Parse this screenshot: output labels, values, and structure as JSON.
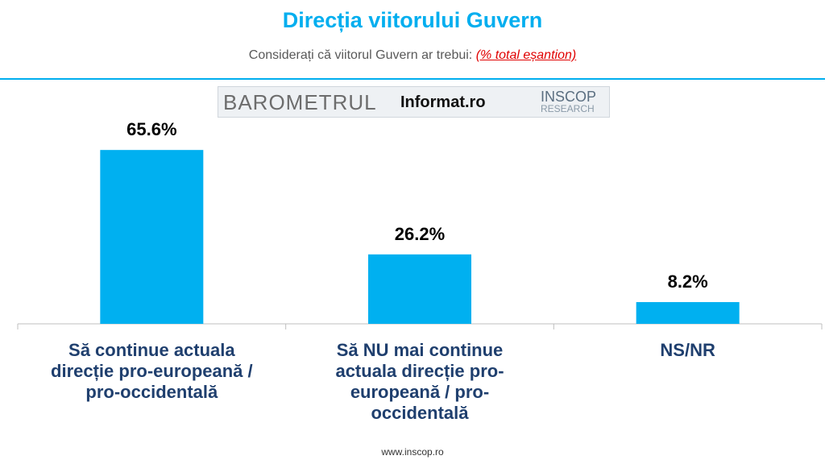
{
  "chart_data": {
    "type": "bar",
    "title": "Direcția viitorului Guvern",
    "subtitle": "Considerați că viitorul Guvern ar trebui:",
    "subtitle_note": "(% total eșantion)",
    "categories": [
      "Să continue actuala direcție pro-europeană / pro-occidentală",
      "Să NU mai continue actuala direcție pro-europeană / pro-occidentală",
      "NS/NR"
    ],
    "values": [
      65.6,
      26.2,
      8.2
    ],
    "value_labels": [
      "65.6%",
      "26.2%",
      "8.2%"
    ],
    "color": "#00b0f0"
  },
  "logo": {
    "barometer": "BAROMETRUL",
    "partner": "Informat.ro",
    "brand": "INSCOP",
    "brand_sub": "RESEARCH"
  },
  "footer": "www.inscop.ro"
}
